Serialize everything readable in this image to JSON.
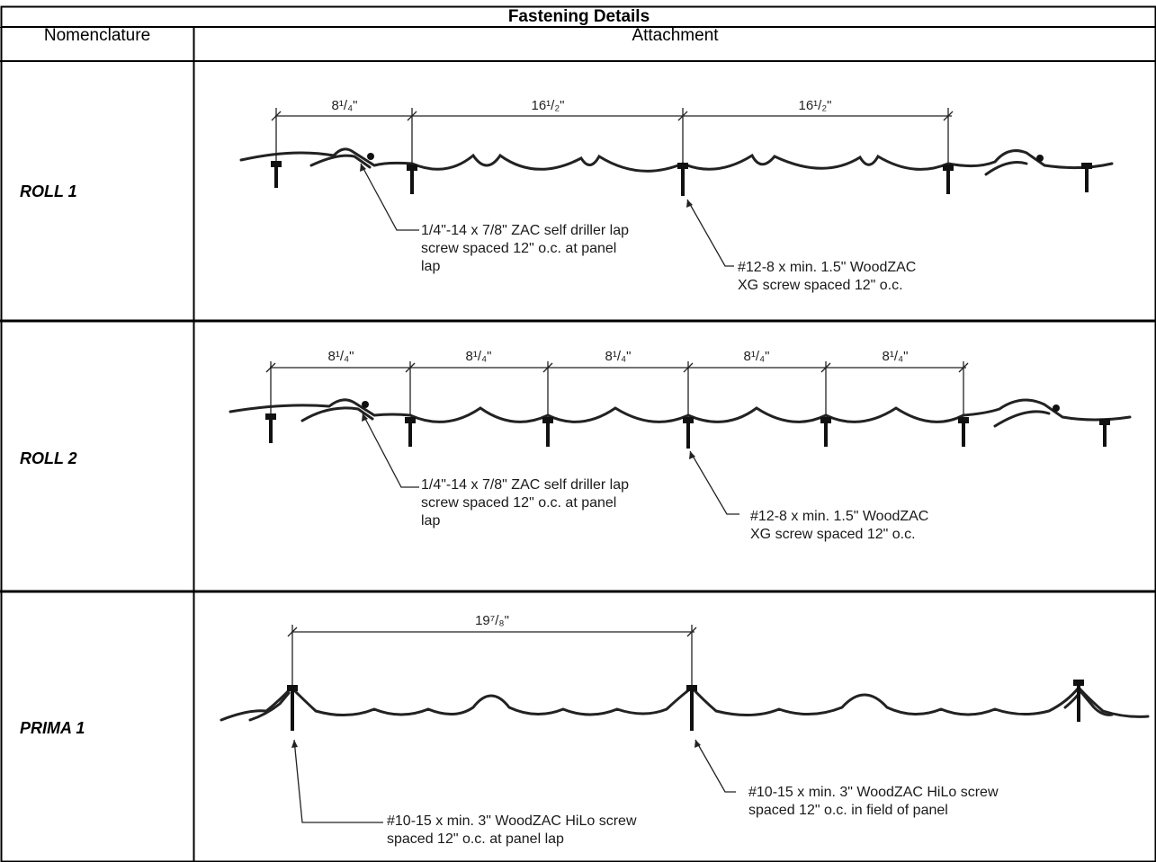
{
  "table": {
    "title": "Fastening Details",
    "headers": {
      "nomenclature": "Nomenclature",
      "attachment": "Attachment"
    },
    "rows": [
      {
        "name": "ROLL 1",
        "dimensions": [
          "8¹/₄\"",
          "16¹/₂\"",
          "16¹/₂\""
        ],
        "callouts": {
          "lap": "1/4\"-14 x 7/8\" ZAC self driller lap\nscrew spaced 12\" o.c. at panel\nlap",
          "field": "#12-8 x min. 1.5\" WoodZAC\nXG screw spaced 12\" o.c."
        }
      },
      {
        "name": "ROLL 2",
        "dimensions": [
          "8¹/₄\"",
          "8¹/₄\"",
          "8¹/₄\"",
          "8¹/₄\"",
          "8¹/₄\""
        ],
        "callouts": {
          "lap": "1/4\"-14 x 7/8\" ZAC self driller lap\nscrew spaced 12\" o.c. at panel\nlap",
          "field": "#12-8 x min. 1.5\" WoodZAC\nXG screw spaced 12\" o.c."
        }
      },
      {
        "name": "PRIMA 1",
        "dimensions": [
          "19⁷/₈\""
        ],
        "callouts": {
          "lap": "#10-15 x min. 3\" WoodZAC HiLo screw\nspaced 12\" o.c. at panel lap",
          "field": "#10-15 x min. 3\" WoodZAC HiLo screw\nspaced 12\" o.c. in field of panel"
        }
      }
    ]
  }
}
